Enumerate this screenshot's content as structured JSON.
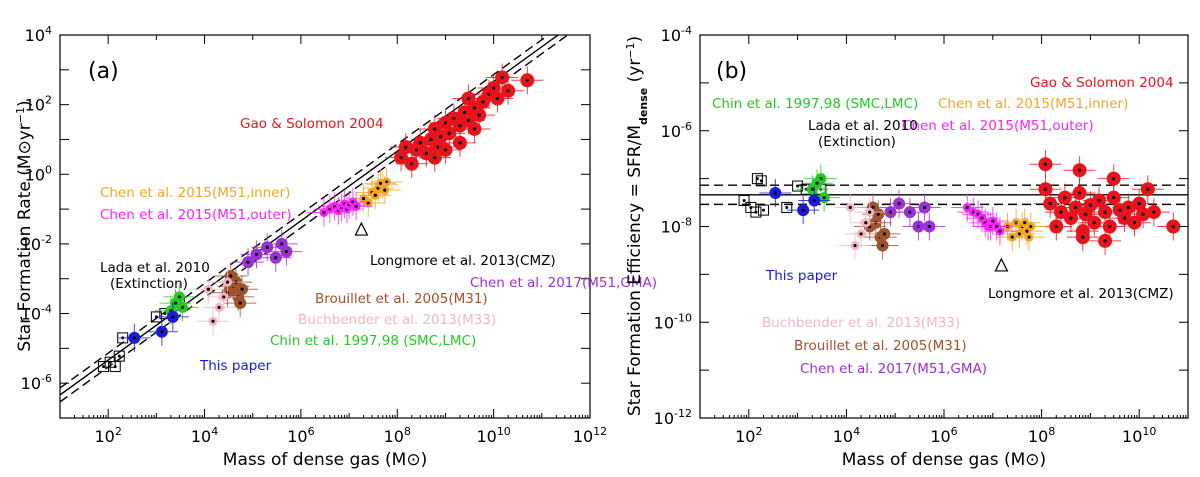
{
  "colors": {
    "gao": "#e8141c",
    "chen_inner": "#f5a623",
    "chen_outer": "#ff22ff",
    "chen_gma": "#9b30d9",
    "brouillet": "#a0522d",
    "buchbender": "#f4b6c2",
    "chin": "#22cc22",
    "lada": "#000000",
    "this_paper": "#1a1adf",
    "longmore": "#000000"
  },
  "chart_data": [
    {
      "panel": "(a)",
      "type": "scatter",
      "xlabel": "Mass of dense gas (M⊙)",
      "ylabel": "Star Formation Rate (M⊙yr⁻¹)",
      "x_scale": "log",
      "y_scale": "log",
      "xlim": [
        10.0,
        1000000000000.0
      ],
      "ylim": [
        1e-07,
        10000.0
      ],
      "x_ticks": [
        "10^2",
        "10^4",
        "10^6",
        "10^8",
        "10^10",
        "10^12"
      ],
      "y_ticks": [
        "10^-6",
        "10^-4",
        "10^-2",
        "10^0",
        "10^2",
        "10^4"
      ],
      "fit_lines": [
        {
          "style": "solid",
          "relation": "SFR = 4.6e-8 * M"
        },
        {
          "style": "dashed",
          "relation": "SFR = 7.3e-8 * M"
        },
        {
          "style": "dashed",
          "relation": "SFR = 2.9e-8 * M"
        }
      ],
      "annotations": [
        {
          "text": "Gao & Solomon 2004",
          "color_key": "gao"
        },
        {
          "text": "Chen et al. 2015(M51,inner)",
          "color_key": "chen_inner"
        },
        {
          "text": "Chen et al. 2015(M51,outer)",
          "color_key": "chen_outer"
        },
        {
          "text": "Lada et al. 2010",
          "color_key": "lada"
        },
        {
          "text": "(Extinction)",
          "color_key": "lada"
        },
        {
          "text": "Longmore et al. 2013(CMZ)",
          "color_key": "longmore"
        },
        {
          "text": "Chen et al. 2017(M51,GMA)",
          "color_key": "chen_gma"
        },
        {
          "text": "Brouillet et al. 2005(M31)",
          "color_key": "brouillet"
        },
        {
          "text": "Buchbender et al. 2013(M33)",
          "color_key": "buchbender"
        },
        {
          "text": "Chin et al. 1997,98 (SMC,LMC)",
          "color_key": "chin"
        },
        {
          "text": "This paper",
          "color_key": "this_paper"
        }
      ],
      "series": [
        {
          "color_key": "gao",
          "marker": "filled-circle-dot",
          "points": [
            [
              120000000.0,
              3
            ],
            [
              150000000.0,
              6
            ],
            [
              200000000.0,
              2
            ],
            [
              250000000.0,
              5
            ],
            [
              300000000.0,
              8
            ],
            [
              400000000.0,
              4
            ],
            [
              500000000.0,
              10
            ],
            [
              600000000.0,
              20
            ],
            [
              700000000.0,
              6
            ],
            [
              800000000.0,
              12
            ],
            [
              1000000000.0,
              30
            ],
            [
              1200000000.0,
              15
            ],
            [
              1500000000.0,
              40
            ],
            [
              2000000000.0,
              25
            ],
            [
              2500000000.0,
              60
            ],
            [
              3000000000.0,
              35
            ],
            [
              4000000000.0,
              80
            ],
            [
              5000000000.0,
              50
            ],
            [
              6000000000.0,
              120
            ],
            [
              8000000000.0,
              200
            ],
            [
              10000000000.0,
              300
            ],
            [
              12000000000.0,
              150
            ],
            [
              15000000000.0,
              600
            ],
            [
              20000000000.0,
              250
            ],
            [
              50000000000.0,
              500
            ],
            [
              3000000000.0,
              150
            ],
            [
              2000000000.0,
              8
            ],
            [
              1000000000.0,
              5
            ],
            [
              600000000.0,
              3
            ],
            [
              4000000000.0,
              20
            ]
          ]
        },
        {
          "color_key": "chen_inner",
          "marker": "filled-circle-dot",
          "points": [
            [
              20000000.0,
              0.2
            ],
            [
              30000000.0,
              0.3
            ],
            [
              40000000.0,
              0.4
            ],
            [
              50000000.0,
              0.5
            ],
            [
              60000000.0,
              0.6
            ],
            [
              35000000.0,
              0.25
            ],
            [
              55000000.0,
              0.35
            ],
            [
              25000000.0,
              0.15
            ],
            [
              45000000.0,
              0.55
            ]
          ]
        },
        {
          "color_key": "chen_outer",
          "marker": "filled-circle-dot",
          "points": [
            [
              3000000.0,
              0.08
            ],
            [
              4000000.0,
              0.1
            ],
            [
              5000000.0,
              0.12
            ],
            [
              6000000.0,
              0.09
            ],
            [
              7000000.0,
              0.11
            ],
            [
              8000000.0,
              0.14
            ],
            [
              9000000.0,
              0.1
            ],
            [
              10000000.0,
              0.13
            ],
            [
              12000000.0,
              0.16
            ],
            [
              14000000.0,
              0.12
            ]
          ]
        },
        {
          "color_key": "lada",
          "marker": "open-square-dot",
          "points": [
            [
              80,
              3e-06
            ],
            [
              110,
              4e-06
            ],
            [
              140,
              3e-06
            ],
            [
              170,
              6e-06
            ],
            [
              200,
              2e-05
            ],
            [
              1000,
              8e-05
            ],
            [
              1500,
              0.0001
            ],
            [
              3000,
              0.0002
            ]
          ]
        },
        {
          "color_key": "longmore",
          "marker": "triangle",
          "points": [
            [
              18000000.0,
              0.025
            ]
          ]
        },
        {
          "color_key": "chen_gma",
          "marker": "filled-circle-dot",
          "points": [
            [
              80000.0,
              0.003
            ],
            [
              120000.0,
              0.005
            ],
            [
              200000.0,
              0.008
            ],
            [
              300000.0,
              0.004
            ],
            [
              400000.0,
              0.01
            ],
            [
              500000.0,
              0.006
            ]
          ]
        },
        {
          "color_key": "brouillet",
          "marker": "filled-circle-dot",
          "points": [
            [
              30000.0,
              0.0004
            ],
            [
              40000.0,
              0.0006
            ],
            [
              50000.0,
              0.0003
            ],
            [
              60000.0,
              0.0005
            ],
            [
              45000.0,
              0.0008
            ],
            [
              35000.0,
              0.0012
            ],
            [
              55000.0,
              0.0002
            ]
          ]
        },
        {
          "color_key": "buchbender",
          "marker": "filled-circle-dot",
          "points": [
            [
              15000.0,
              6e-05
            ],
            [
              20000.0,
              0.00015
            ],
            [
              25000.0,
              0.0003
            ],
            [
              12000.0,
              0.0005
            ],
            [
              30000.0,
              0.0008
            ]
          ]
        },
        {
          "color_key": "chin",
          "marker": "filled-circle-dot",
          "points": [
            [
              2000,
              0.00012
            ],
            [
              3000,
              0.0003
            ],
            [
              3500,
              0.00015
            ],
            [
              2500,
              0.0002
            ]
          ]
        },
        {
          "color_key": "this_paper",
          "marker": "filled-circle-dot",
          "points": [
            [
              350,
              2e-05
            ],
            [
              1300,
              3e-05
            ],
            [
              2200,
              8e-05
            ]
          ]
        }
      ]
    },
    {
      "panel": "(b)",
      "type": "scatter",
      "xlabel": "Mass of dense gas (M⊙)",
      "ylabel": "Star Formation Efficiency = SFR/Mdense (yr⁻¹)",
      "x_scale": "log",
      "y_scale": "log",
      "xlim": [
        10.0,
        100000000000.0
      ],
      "ylim": [
        1e-12,
        0.0001
      ],
      "x_ticks": [
        "10^2",
        "10^4",
        "10^6",
        "10^8",
        "10^10"
      ],
      "y_ticks": [
        "10^-12",
        "10^-10",
        "10^-8",
        "10^-6",
        "10^-4"
      ],
      "h_lines": [
        {
          "style": "solid",
          "y": 4.6e-08
        },
        {
          "style": "dashed",
          "y": 7.3e-08
        },
        {
          "style": "dashed",
          "y": 2.9e-08
        }
      ],
      "annotations": [
        {
          "text": "Gao & Solomon 2004",
          "color_key": "gao"
        },
        {
          "text": "Chin et al. 1997,98 (SMC,LMC)",
          "color_key": "chin"
        },
        {
          "text": "Chen et al. 2015(M51,inner)",
          "color_key": "chen_inner"
        },
        {
          "text": "Chen et al. 2015(M51,outer)",
          "color_key": "chen_outer"
        },
        {
          "text": "Lada et al. 2010",
          "color_key": "lada"
        },
        {
          "text": "(Extinction)",
          "color_key": "lada"
        },
        {
          "text": "This paper",
          "color_key": "this_paper"
        },
        {
          "text": "Longmore et al. 2013(CMZ)",
          "color_key": "longmore"
        },
        {
          "text": "Buchbender et al. 2013(M33)",
          "color_key": "buchbender"
        },
        {
          "text": "Brouillet et al. 2005(M31)",
          "color_key": "brouillet"
        },
        {
          "text": "Chen et al. 2017(M51,GMA)",
          "color_key": "chen_gma"
        }
      ],
      "series": [
        {
          "color_key": "gao",
          "marker": "filled-circle-dot",
          "points": [
            [
              120000000.0,
              6e-08
            ],
            [
              150000000.0,
              3e-08
            ],
            [
              200000000.0,
              1e-08
            ],
            [
              250000000.0,
              2e-08
            ],
            [
              300000000.0,
              4e-08
            ],
            [
              400000000.0,
              1.5e-08
            ],
            [
              500000000.0,
              2.5e-08
            ],
            [
              600000000.0,
              5e-08
            ],
            [
              700000000.0,
              8e-09
            ],
            [
              800000000.0,
              1.8e-08
            ],
            [
              1000000000.0,
              2.8e-08
            ],
            [
              1200000000.0,
              1.2e-08
            ],
            [
              1500000000.0,
              3.5e-08
            ],
            [
              2000000000.0,
              2e-08
            ],
            [
              2500000000.0,
              1e-08
            ],
            [
              3000000000.0,
              4e-08
            ],
            [
              4000000000.0,
              2.2e-08
            ],
            [
              5000000000.0,
              1.5e-08
            ],
            [
              6000000000.0,
              2.5e-08
            ],
            [
              8000000000.0,
              1.2e-08
            ],
            [
              10000000000.0,
              3e-08
            ],
            [
              12000000000.0,
              1.8e-08
            ],
            [
              15000000000.0,
              6e-08
            ],
            [
              20000000000.0,
              2e-08
            ],
            [
              50000000000.0,
              1e-08
            ],
            [
              600000000.0,
              1.5e-07
            ],
            [
              120000000.0,
              2e-07
            ],
            [
              3000000000.0,
              1e-07
            ],
            [
              700000000.0,
              6e-09
            ],
            [
              2000000000.0,
              5e-09
            ]
          ]
        },
        {
          "color_key": "chen_inner",
          "marker": "filled-circle-dot",
          "points": [
            [
              20000000.0,
              1e-08
            ],
            [
              30000000.0,
              1.2e-08
            ],
            [
              40000000.0,
              1e-08
            ],
            [
              50000000.0,
              8e-09
            ],
            [
              60000000.0,
              1e-08
            ],
            [
              35000000.0,
              7e-09
            ],
            [
              55000000.0,
              6e-09
            ],
            [
              25000000.0,
              6e-09
            ],
            [
              45000000.0,
              1.2e-08
            ]
          ]
        },
        {
          "color_key": "chen_outer",
          "marker": "filled-circle-dot",
          "points": [
            [
              3000000.0,
              2.5e-08
            ],
            [
              4000000.0,
              2e-08
            ],
            [
              5000000.0,
              1.8e-08
            ],
            [
              6000000.0,
              1.5e-08
            ],
            [
              7000000.0,
              1.2e-08
            ],
            [
              8000000.0,
              1e-08
            ],
            [
              9000000.0,
              1e-08
            ],
            [
              10000000.0,
              1.3e-08
            ],
            [
              12000000.0,
              1e-08
            ],
            [
              14000000.0,
              8e-09
            ]
          ]
        },
        {
          "color_key": "lada",
          "marker": "open-square-dot",
          "points": [
            [
              80,
              3.5e-08
            ],
            [
              110,
              2.5e-08
            ],
            [
              140,
              2e-08
            ],
            [
              150,
              1e-07
            ],
            [
              180,
              9e-08
            ],
            [
              200,
              2.2e-08
            ],
            [
              1000,
              7e-08
            ],
            [
              1500,
              6e-08
            ],
            [
              3000,
              6e-08
            ],
            [
              600,
              2.5e-08
            ]
          ]
        },
        {
          "color_key": "longmore",
          "marker": "triangle",
          "points": [
            [
              15000000.0,
              1.5e-09
            ]
          ]
        },
        {
          "color_key": "chen_gma",
          "marker": "filled-circle-dot",
          "points": [
            [
              80000.0,
              2e-08
            ],
            [
              120000.0,
              3e-08
            ],
            [
              200000.0,
              2e-08
            ],
            [
              300000.0,
              1e-08
            ],
            [
              400000.0,
              2.5e-08
            ],
            [
              500000.0,
              1e-08
            ]
          ]
        },
        {
          "color_key": "brouillet",
          "marker": "filled-circle-dot",
          "points": [
            [
              30000.0,
              1e-08
            ],
            [
              40000.0,
              1.2e-08
            ],
            [
              50000.0,
              6e-09
            ],
            [
              60000.0,
              7e-09
            ],
            [
              45000.0,
              1.8e-08
            ],
            [
              35000.0,
              2.5e-08
            ],
            [
              55000.0,
              4e-09
            ]
          ]
        },
        {
          "color_key": "buchbender",
          "marker": "filled-circle-dot",
          "points": [
            [
              15000.0,
              4e-09
            ],
            [
              20000.0,
              7e-09
            ],
            [
              25000.0,
              1.2e-08
            ],
            [
              12000.0,
              2.5e-08
            ],
            [
              30000.0,
              2e-08
            ]
          ]
        },
        {
          "color_key": "chin",
          "marker": "filled-circle-dot",
          "points": [
            [
              2000,
              6e-08
            ],
            [
              3000,
              1e-07
            ],
            [
              3500,
              4e-08
            ],
            [
              2500,
              8e-08
            ]
          ]
        },
        {
          "color_key": "this_paper",
          "marker": "filled-circle-dot",
          "points": [
            [
              350,
              5e-08
            ],
            [
              1300,
              2.2e-08
            ],
            [
              2200,
              3.5e-08
            ]
          ]
        }
      ]
    }
  ]
}
